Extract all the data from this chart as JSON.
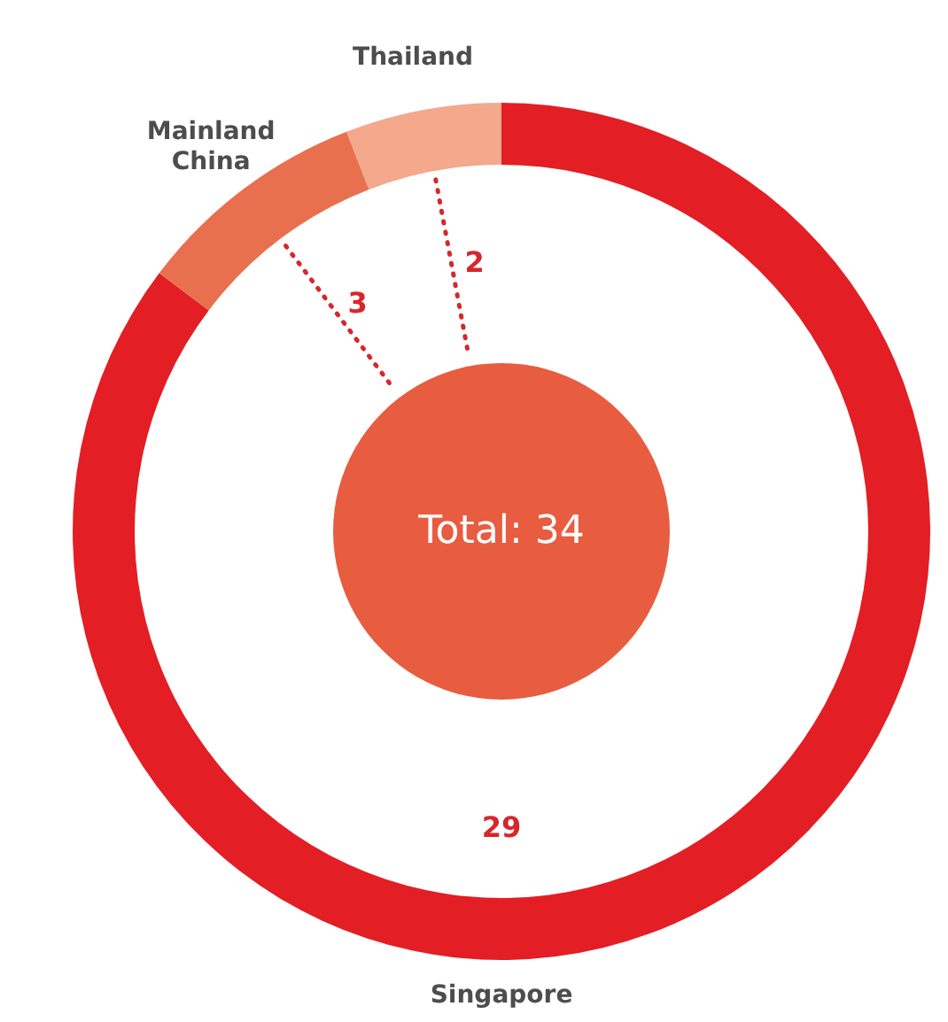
{
  "chart_data": {
    "type": "donut",
    "categories": [
      "Singapore",
      "Mainland China",
      "Thailand"
    ],
    "values": [
      29,
      3,
      2
    ],
    "colors": [
      "#e31e24",
      "#e8704f",
      "#f4a88c"
    ],
    "data_labels": true,
    "legend": false,
    "annotations": [
      "Total: 34"
    ]
  }
}
